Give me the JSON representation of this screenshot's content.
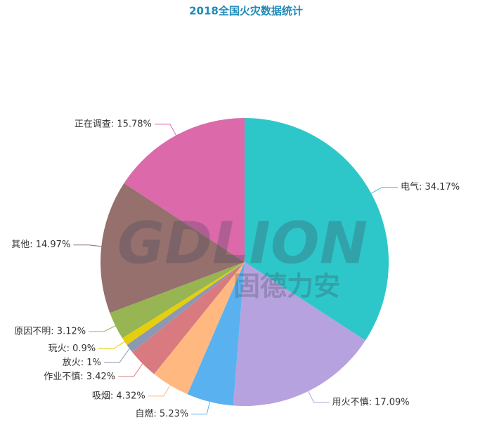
{
  "chart_data": {
    "type": "pie",
    "title": "2018全国火灾数据统计",
    "watermark": [
      "GDLION",
      "固德力安"
    ],
    "values": [
      34.17,
      17.09,
      5.23,
      4.32,
      3.42,
      1,
      0.9,
      3.12,
      14.97,
      15.78
    ],
    "value_labels": [
      "电气: 34.17%",
      "用火不慎: 17.09%",
      "自燃: 5.23%",
      "吸烟: 4.32%",
      "作业不慎: 3.42%",
      "放火: 1%",
      "玩火: 0.9%",
      "原因不明: 3.12%",
      "其他: 14.97%",
      "正在调查: 15.78%"
    ],
    "colors": [
      "#2ec7c9",
      "#b6a2de",
      "#5ab1ef",
      "#ffb980",
      "#d87a80",
      "#8d98b3",
      "#e5cf0d",
      "#97b552",
      "#95706d",
      "#dc69aa"
    ]
  }
}
